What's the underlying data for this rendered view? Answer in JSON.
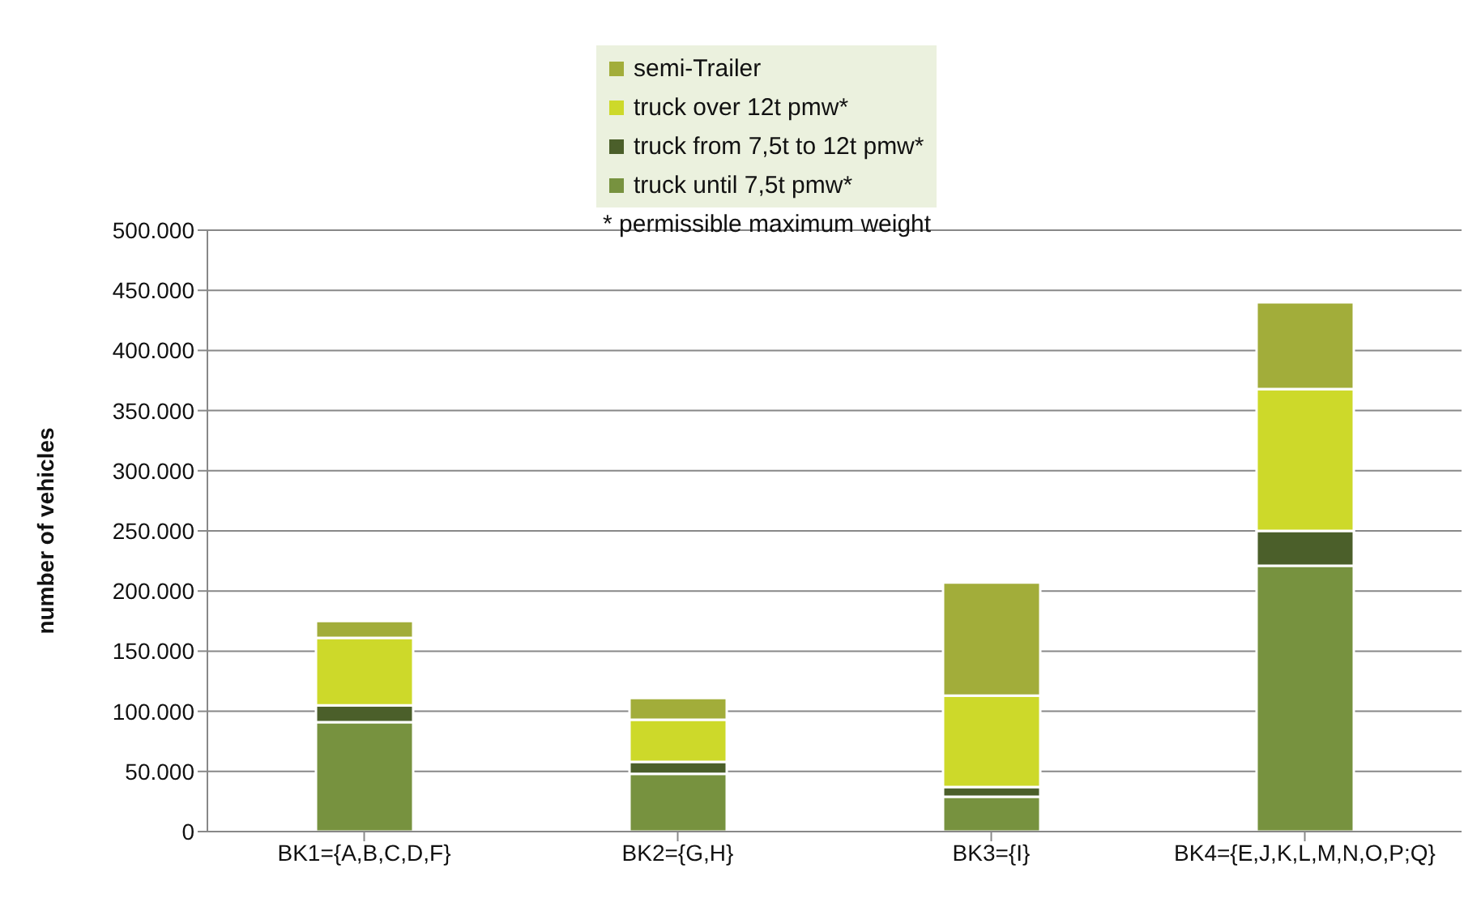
{
  "chart_data": {
    "type": "bar",
    "stacked": true,
    "ylabel": "number of vehicles",
    "categories": [
      "BK1={A,B,C,D,F}",
      "BK2={G,H}",
      "BK3={I}",
      "BK4={E,J,K,L,M,N,O,P;Q}"
    ],
    "series": [
      {
        "name": "truck until 7,5t pmw*",
        "color": "#77923f",
        "values": [
          91000,
          48000,
          29000,
          221000
        ]
      },
      {
        "name": "truck from 7,5t to 12t pmw*",
        "color": "#4b5f2a",
        "values": [
          14000,
          10000,
          8000,
          29000
        ]
      },
      {
        "name": "truck over 12t pmw*",
        "color": "#cdd92a",
        "values": [
          56000,
          35000,
          76000,
          118000
        ]
      },
      {
        "name": "semi-Trailer",
        "color": "#a2ad3a",
        "values": [
          14000,
          18000,
          94000,
          72000
        ]
      }
    ],
    "ylim": [
      0,
      500000
    ],
    "yticks": [
      {
        "value": 0,
        "label": "0"
      },
      {
        "value": 50000,
        "label": "50.000"
      },
      {
        "value": 100000,
        "label": "100.000"
      },
      {
        "value": 150000,
        "label": "150.000"
      },
      {
        "value": 200000,
        "label": "200.000"
      },
      {
        "value": 250000,
        "label": "250.000"
      },
      {
        "value": 300000,
        "label": "300.000"
      },
      {
        "value": 350000,
        "label": "350.000"
      },
      {
        "value": 400000,
        "label": "400.000"
      },
      {
        "value": 450000,
        "label": "450.000"
      },
      {
        "value": 500000,
        "label": "500.000"
      }
    ],
    "grid": "y",
    "legend": "top",
    "annotations": [
      "* permissible maximum weight"
    ]
  }
}
